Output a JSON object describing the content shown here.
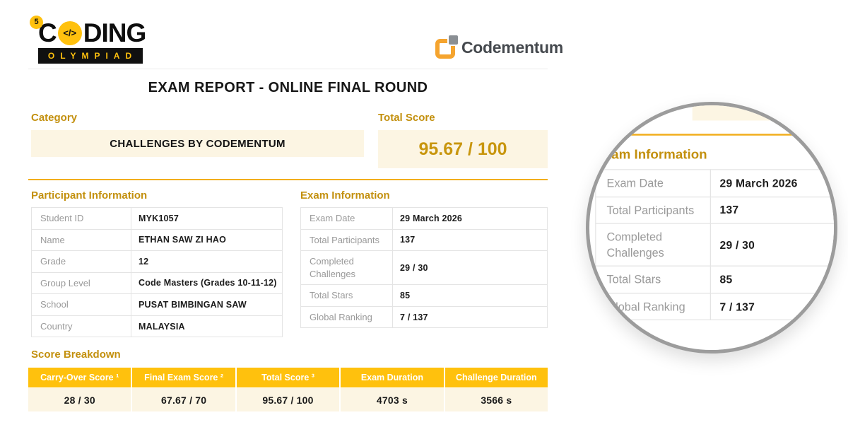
{
  "brand": {
    "coding": {
      "badge": "5",
      "prefix": "C",
      "code_symbol": "</>",
      "suffix": "DING",
      "subtitle": "OLYMPIAD"
    },
    "codementum": {
      "name": "Codementum"
    }
  },
  "header": {
    "title": "EXAM REPORT - ONLINE FINAL ROUND"
  },
  "category": {
    "label": "Category",
    "value": "CHALLENGES BY CODEMENTUM"
  },
  "total_score": {
    "label": "Total Score",
    "value": "95.67 / 100"
  },
  "participant_info": {
    "title": "Participant Information",
    "rows": [
      {
        "label": "Student ID",
        "value": "MYK1057"
      },
      {
        "label": "Name",
        "value": "ETHAN SAW ZI HAO"
      },
      {
        "label": "Grade",
        "value": "12"
      },
      {
        "label": "Group Level",
        "value": "Code Masters (Grades 10-11-12)"
      },
      {
        "label": "School",
        "value": "PUSAT BIMBINGAN SAW"
      },
      {
        "label": "Country",
        "value": "MALAYSIA"
      }
    ]
  },
  "exam_info": {
    "title": "Exam Information",
    "rows": [
      {
        "label": "Exam Date",
        "value": "29 March 2026"
      },
      {
        "label": "Total Participants",
        "value": "137"
      },
      {
        "label": "Completed Challenges",
        "value": "29 / 30"
      },
      {
        "label": "Total Stars",
        "value": "85"
      },
      {
        "label": "Global Ranking",
        "value": "7 / 137"
      }
    ]
  },
  "score_breakdown": {
    "title": "Score Breakdown",
    "columns": [
      "Carry-Over Score ¹",
      "Final Exam Score ²",
      "Total Score ³",
      "Exam Duration",
      "Challenge Duration"
    ],
    "values": [
      "28 / 30",
      "67.67 / 70",
      "95.67 / 100",
      "4703 s",
      "3566 s"
    ]
  },
  "colors": {
    "accent_yellow": "#FFC10D",
    "heading_gold": "#C3900E",
    "score_gold": "#C8960E",
    "cream": "#FCF5E3",
    "divider_amber": "#F2AE1C",
    "circle_border": "#9C9C9C"
  }
}
